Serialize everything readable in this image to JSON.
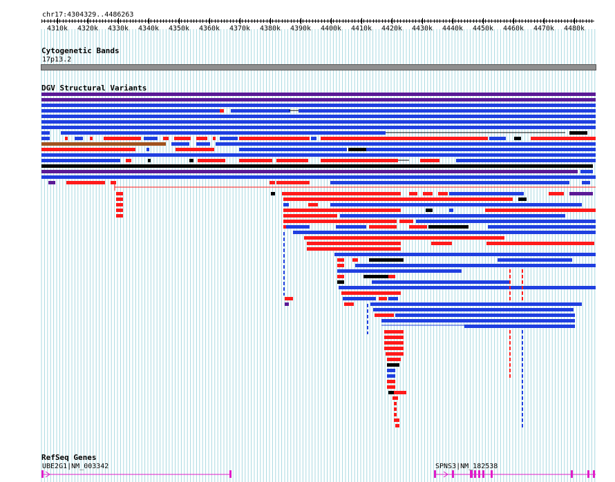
{
  "ruler": {
    "region": "chr17:4304329..4486263",
    "ticks": [
      "4310k",
      "4320k",
      "4330k",
      "4340k",
      "4350k",
      "4360k",
      "4370k",
      "4380k",
      "4390k",
      "4400k",
      "4410k",
      "4420k",
      "4430k",
      "4440k",
      "4450k",
      "4460k",
      "4470k",
      "4480k"
    ]
  },
  "cytobands": {
    "title": "Cytogenetic Bands",
    "band_label": "17p13.2"
  },
  "dgv": {
    "title": "DGV Structural Variants"
  },
  "refseq": {
    "title": "RefSeq Genes",
    "genes": [
      {
        "label": "UBE2G1|NM_003342"
      },
      {
        "label": "SPNS3|NM_182538"
      }
    ]
  },
  "colors": {
    "gain": "#1f3fe0",
    "loss": "#ff1a1a",
    "both": "#000000",
    "inversion": "#5a1a96",
    "gene": "#e01cc8",
    "grid": "#a8d8e0",
    "cytoband": "#8f8f8f"
  }
}
